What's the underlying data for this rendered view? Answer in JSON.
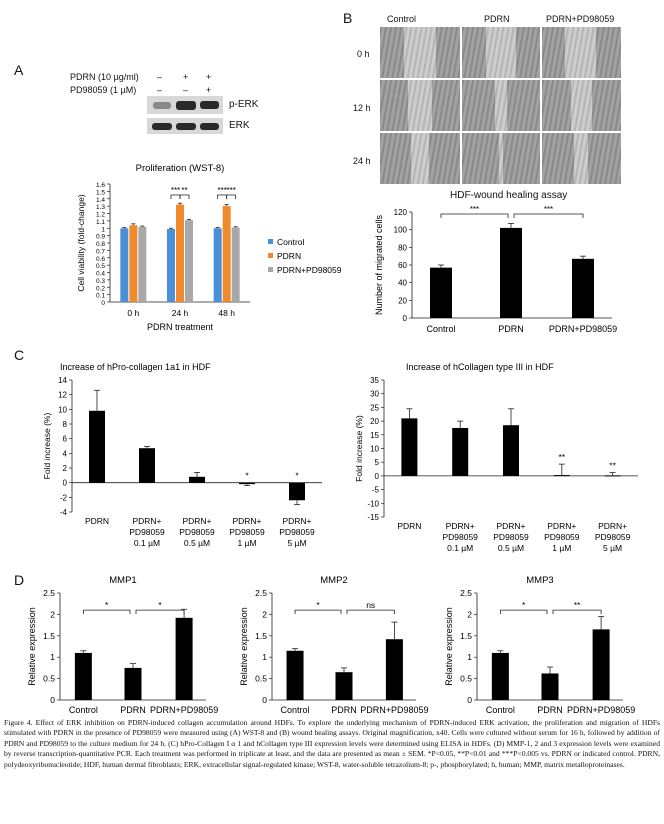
{
  "panel_letters": {
    "a": "A",
    "b": "B",
    "c": "C",
    "d": "D"
  },
  "blot": {
    "row1_label": "PDRN (10 µg/ml)",
    "row2_label": "PD98059 (1 µM)",
    "row1_marks": [
      "–",
      "+",
      "+"
    ],
    "row2_marks": [
      "–",
      "–",
      "+"
    ],
    "band1_label": "p-ERK",
    "band2_label": "ERK"
  },
  "wound": {
    "cols": [
      "Control",
      "PDRN",
      "PDRN+PD98059"
    ],
    "rows": [
      "0 h",
      "12 h",
      "24 h"
    ],
    "title": "HDF-wound healing assay"
  },
  "chart_data": [
    {
      "id": "wst8",
      "type": "bar",
      "title": "Proliferation (WST-8)",
      "xlabel": "PDRN treatment",
      "ylabel": "Cell viability (fold-change)",
      "categories": [
        "0 h",
        "24 h",
        "48 h"
      ],
      "series": [
        {
          "name": "Control",
          "color": "#4a90d9",
          "values": [
            1.0,
            0.99,
            1.0
          ],
          "errors": [
            0.01,
            0.01,
            0.01
          ]
        },
        {
          "name": "PDRN",
          "color": "#f08a2c",
          "values": [
            1.04,
            1.32,
            1.3
          ],
          "errors": [
            0.02,
            0.02,
            0.02
          ]
        },
        {
          "name": "PDRN+PD98059",
          "color": "#a8a8a8",
          "values": [
            1.02,
            1.11,
            1.01
          ],
          "errors": [
            0.01,
            0.01,
            0.01
          ]
        }
      ],
      "ylim": [
        0,
        1.6
      ],
      "yticks": [
        "0",
        "0.1",
        "0.2",
        "0.3",
        "0.4",
        "0.5",
        "0.6",
        "0.7",
        "0.8",
        "0.9",
        "1",
        "1.1",
        "1.2",
        "1.3",
        "1.4",
        "1.5",
        "1.6"
      ],
      "sig": [
        "***",
        "**",
        "***",
        "***"
      ]
    },
    {
      "id": "migration",
      "type": "bar",
      "ylabel": "Number of migrated cells",
      "categories": [
        "Control",
        "PDRN",
        "PDRN+PD98059"
      ],
      "values": [
        57,
        102,
        67
      ],
      "errors": [
        3,
        5,
        3
      ],
      "ylim": [
        0,
        120
      ],
      "yticks": [
        "0",
        "20",
        "40",
        "60",
        "80",
        "100",
        "120"
      ],
      "sig": [
        "***",
        "***"
      ]
    },
    {
      "id": "collagen1",
      "type": "bar",
      "title": "Increase of hPro-collagen 1a1 in HDF",
      "ylabel": "Fold increase (%)",
      "categories": [
        [
          "PDRN"
        ],
        [
          "PDRN+",
          "PD98059",
          "0.1 µM"
        ],
        [
          "PDRN+",
          "PD98059",
          "0.5 µM"
        ],
        [
          "PDRN+",
          "PD98059",
          "1 µM"
        ],
        [
          "PDRN+",
          "PD98059",
          "5 µM"
        ]
      ],
      "values": [
        9.8,
        4.7,
        0.8,
        -0.2,
        -2.4
      ],
      "errors": [
        2.8,
        0.25,
        0.6,
        0.2,
        0.6
      ],
      "ylim": [
        -4,
        14
      ],
      "yticks": [
        "-4",
        "-2",
        "0",
        "2",
        "4",
        "6",
        "8",
        "10",
        "12",
        "14"
      ],
      "sig": [
        "",
        "",
        "",
        "*",
        "*"
      ]
    },
    {
      "id": "collagen3",
      "type": "bar",
      "title": "Increase of hCollagen type III in HDF",
      "ylabel": "Fold increase (%)",
      "categories": [
        [
          "PDRN"
        ],
        [
          "PDRN+",
          "PD98059",
          "0.1 µM"
        ],
        [
          "PDRN+",
          "PD98059",
          "0.5 µM"
        ],
        [
          "PDRN+",
          "PD98059",
          "1 µM"
        ],
        [
          "PDRN+",
          "PD98059",
          "5 µM"
        ]
      ],
      "values": [
        21,
        17.5,
        18.5,
        0.3,
        0.2
      ],
      "errors": [
        3.5,
        2.5,
        6,
        4,
        1
      ],
      "ylim": [
        -15,
        35
      ],
      "yticks": [
        "-15",
        "-10",
        "-5",
        "0",
        "5",
        "10",
        "15",
        "20",
        "25",
        "30",
        "35"
      ],
      "sig": [
        "",
        "",
        "",
        "**",
        "**"
      ]
    },
    {
      "id": "mmp1",
      "type": "bar",
      "title": "MMP1",
      "ylabel": "Relative expression",
      "categories": [
        "Control",
        "PDRN",
        "PDRN+PD98059"
      ],
      "values": [
        1.1,
        0.75,
        1.92
      ],
      "errors": [
        0.05,
        0.1,
        0.2
      ],
      "ylim": [
        0,
        2.5
      ],
      "yticks": [
        "0",
        "0.5",
        "1",
        "1.5",
        "2",
        "2.5"
      ],
      "sig": [
        "*",
        "*"
      ]
    },
    {
      "id": "mmp2",
      "type": "bar",
      "title": "MMP2",
      "ylabel": "Relative expression",
      "categories": [
        "Control",
        "PDRN",
        "PDRN+PD98059"
      ],
      "values": [
        1.15,
        0.65,
        1.42
      ],
      "errors": [
        0.05,
        0.1,
        0.4
      ],
      "ylim": [
        0,
        2.5
      ],
      "yticks": [
        "0",
        "0.5",
        "1",
        "1.5",
        "2",
        "2.5"
      ],
      "sig": [
        "*",
        "ns"
      ]
    },
    {
      "id": "mmp3",
      "type": "bar",
      "title": "MMP3",
      "ylabel": "Relative expression",
      "categories": [
        "Control",
        "PDRN",
        "PDRN+PD98059"
      ],
      "values": [
        1.1,
        0.62,
        1.65
      ],
      "errors": [
        0.05,
        0.15,
        0.3
      ],
      "ylim": [
        0,
        2.5
      ],
      "yticks": [
        "0",
        "0.5",
        "1",
        "1.5",
        "2",
        "2.5"
      ],
      "sig": [
        "*",
        "**"
      ]
    }
  ],
  "caption": "Figure 4. Effect of ERK inhibition on PDRN-induced collagen accumulation around HDFs. To explore the underlying mechanism of PDRN-induced ERK activation, the proliferation and migration of HDFs stimulated with PDRN in the presence of PD98059 were measured using (A) WST-8 and (B) wound healing assays. Original magnification, x40. Cells were cultured without serum for 16 h, followed by addition of PDRN and PD98059 to the culture medium for 24 h. (C) hPro-Collagen I α 1 and hCollagen type III expression levels were determined using ELISA in HDFs. (D) MMP-1, 2 and 3 expression levels were examined by reverse transcription-quantitative PCR. Each treatment was performed in triplicate at least, and the data are presented as mean ± SEM. *P<0.05, **P<0.01 and ***P<0.005 vs. PDRN or indicated control. PDRN, polydeoxyribonucleotide; HDF, human dermal fibroblasts; ERK, extracellular signal-regulated kinase; WST-8, water-soluble tetrazolium-8; p-, phosphorylated; h, human; MMP, matrix metalloproteinases."
}
